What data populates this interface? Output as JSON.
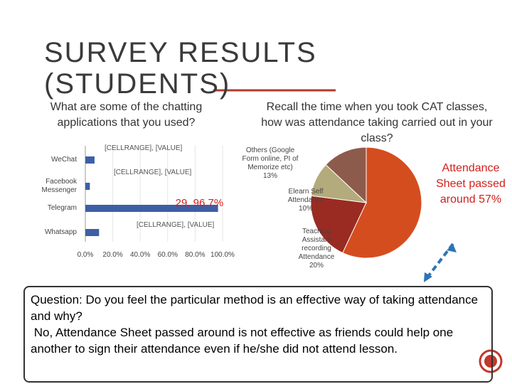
{
  "title": "SURVEY RESULTS (STUDENTS)",
  "question": {
    "lines": [
      "Question: Do you feel the particular method is an effective way of taking attendance and why?",
      " No, Attendance Sheet passed around is not effective as friends could help one another to sign their attendance even if he/she did not attend lesson."
    ]
  },
  "chart_data": [
    {
      "type": "bar",
      "orientation": "horizontal",
      "title": "What are some of the chatting applications that you used?",
      "categories": [
        "WeChat",
        "Facebook Messenger",
        "Telegram",
        "Whatsapp"
      ],
      "values": [
        6.7,
        3.3,
        96.7,
        10.0
      ],
      "value_labels": [
        "[CELLRANGE], [VALUE]",
        "[CELLRANGE], [VALUE]",
        "29, 96.7%",
        "[CELLRANGE], [VALUE]"
      ],
      "color": "#3d5fa6",
      "xlim": [
        0,
        100
      ],
      "xticks": [
        {
          "value": 0,
          "label": "0.0%"
        },
        {
          "value": 20,
          "label": "20.0%"
        },
        {
          "value": 40,
          "label": "40.0%"
        },
        {
          "value": 60,
          "label": "60.0%"
        },
        {
          "value": 80,
          "label": "80.0%"
        },
        {
          "value": 100,
          "label": "100.0%"
        }
      ]
    },
    {
      "type": "pie",
      "title": "Recall the time when you took CAT classes, how was attendance taking carried out in your class?",
      "categories": [
        "Attendance Sheet passed around",
        "Teaching Assistant recording Attendance",
        "Elearn Self Attendance",
        "Others (Google Form online, PI of Memorize etc)"
      ],
      "values": [
        57,
        20,
        10,
        13
      ],
      "value_labels": [
        "57%",
        "20%",
        "10%",
        "13%"
      ],
      "colors": [
        "#d44d1f",
        "#9a2b22",
        "#b3ab7c",
        "#8d5b4c"
      ]
    }
  ]
}
